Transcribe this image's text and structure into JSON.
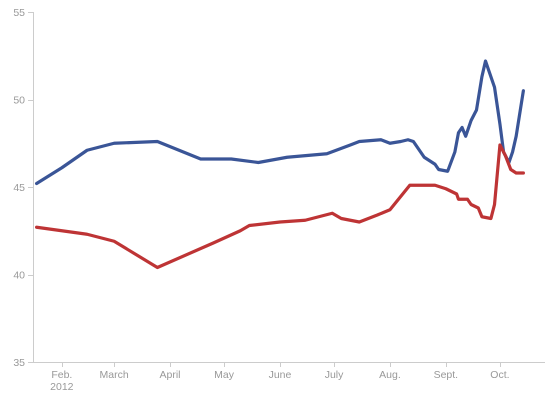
{
  "chart_data": {
    "type": "line",
    "title": "",
    "xlabel": "",
    "ylabel": "",
    "x_range": [
      "2012-01-16",
      "2012-10-26"
    ],
    "ylim": [
      35,
      55
    ],
    "y_ticks": [
      35,
      40,
      45,
      50,
      55
    ],
    "x_ticks": [
      {
        "date": "2012-02-01",
        "label": "Feb.",
        "sublabel": "2012"
      },
      {
        "date": "2012-03-01",
        "label": "March",
        "sublabel": ""
      },
      {
        "date": "2012-04-01",
        "label": "April",
        "sublabel": ""
      },
      {
        "date": "2012-05-01",
        "label": "May",
        "sublabel": ""
      },
      {
        "date": "2012-06-01",
        "label": "June",
        "sublabel": ""
      },
      {
        "date": "2012-07-01",
        "label": "July",
        "sublabel": ""
      },
      {
        "date": "2012-08-01",
        "label": "Aug.",
        "sublabel": ""
      },
      {
        "date": "2012-09-01",
        "label": "Sept.",
        "sublabel": ""
      },
      {
        "date": "2012-10-01",
        "label": "Oct.",
        "sublabel": ""
      }
    ],
    "grid": false,
    "legend": "none",
    "series": [
      {
        "color": "#3a5597",
        "points": [
          {
            "x": "2012-01-18",
            "y": 45.2
          },
          {
            "x": "2012-02-01",
            "y": 46.1
          },
          {
            "x": "2012-02-15",
            "y": 47.1
          },
          {
            "x": "2012-03-01",
            "y": 47.5
          },
          {
            "x": "2012-03-25",
            "y": 47.6
          },
          {
            "x": "2012-04-18",
            "y": 46.6
          },
          {
            "x": "2012-05-05",
            "y": 46.6
          },
          {
            "x": "2012-05-20",
            "y": 46.4
          },
          {
            "x": "2012-06-05",
            "y": 46.7
          },
          {
            "x": "2012-06-27",
            "y": 46.9
          },
          {
            "x": "2012-07-10",
            "y": 47.4
          },
          {
            "x": "2012-07-15",
            "y": 47.6
          },
          {
            "x": "2012-07-27",
            "y": 47.7
          },
          {
            "x": "2012-08-01",
            "y": 47.5
          },
          {
            "x": "2012-08-07",
            "y": 47.6
          },
          {
            "x": "2012-08-11",
            "y": 47.7
          },
          {
            "x": "2012-08-14",
            "y": 47.6
          },
          {
            "x": "2012-08-20",
            "y": 46.7
          },
          {
            "x": "2012-08-26",
            "y": 46.3
          },
          {
            "x": "2012-08-28",
            "y": 46.0
          },
          {
            "x": "2012-09-02",
            "y": 45.9
          },
          {
            "x": "2012-09-06",
            "y": 47.0
          },
          {
            "x": "2012-09-08",
            "y": 48.1
          },
          {
            "x": "2012-09-10",
            "y": 48.4
          },
          {
            "x": "2012-09-12",
            "y": 47.9
          },
          {
            "x": "2012-09-15",
            "y": 48.8
          },
          {
            "x": "2012-09-18",
            "y": 49.4
          },
          {
            "x": "2012-09-21",
            "y": 51.3
          },
          {
            "x": "2012-09-23",
            "y": 52.2
          },
          {
            "x": "2012-09-25",
            "y": 51.6
          },
          {
            "x": "2012-09-28",
            "y": 50.7
          },
          {
            "x": "2012-10-01",
            "y": 48.6
          },
          {
            "x": "2012-10-03",
            "y": 47.0
          },
          {
            "x": "2012-10-06",
            "y": 46.4
          },
          {
            "x": "2012-10-08",
            "y": 47.0
          },
          {
            "x": "2012-10-10",
            "y": 47.9
          },
          {
            "x": "2012-10-14",
            "y": 50.5
          }
        ]
      },
      {
        "color": "#be3435",
        "points": [
          {
            "x": "2012-01-18",
            "y": 42.7
          },
          {
            "x": "2012-02-15",
            "y": 42.3
          },
          {
            "x": "2012-03-01",
            "y": 41.9
          },
          {
            "x": "2012-03-25",
            "y": 40.4
          },
          {
            "x": "2012-04-25",
            "y": 41.8
          },
          {
            "x": "2012-05-10",
            "y": 42.5
          },
          {
            "x": "2012-05-15",
            "y": 42.8
          },
          {
            "x": "2012-06-01",
            "y": 43.0
          },
          {
            "x": "2012-06-15",
            "y": 43.1
          },
          {
            "x": "2012-06-30",
            "y": 43.5
          },
          {
            "x": "2012-07-05",
            "y": 43.2
          },
          {
            "x": "2012-07-15",
            "y": 43.0
          },
          {
            "x": "2012-07-25",
            "y": 43.4
          },
          {
            "x": "2012-08-01",
            "y": 43.7
          },
          {
            "x": "2012-08-12",
            "y": 45.1
          },
          {
            "x": "2012-08-26",
            "y": 45.1
          },
          {
            "x": "2012-09-01",
            "y": 44.9
          },
          {
            "x": "2012-09-07",
            "y": 44.6
          },
          {
            "x": "2012-09-08",
            "y": 44.3
          },
          {
            "x": "2012-09-13",
            "y": 44.3
          },
          {
            "x": "2012-09-15",
            "y": 44.0
          },
          {
            "x": "2012-09-19",
            "y": 43.8
          },
          {
            "x": "2012-09-21",
            "y": 43.3
          },
          {
            "x": "2012-09-26",
            "y": 43.2
          },
          {
            "x": "2012-09-28",
            "y": 44.0
          },
          {
            "x": "2012-10-01",
            "y": 47.4
          },
          {
            "x": "2012-10-04",
            "y": 46.8
          },
          {
            "x": "2012-10-07",
            "y": 46.0
          },
          {
            "x": "2012-10-10",
            "y": 45.8
          },
          {
            "x": "2012-10-14",
            "y": 45.8
          }
        ]
      }
    ]
  }
}
